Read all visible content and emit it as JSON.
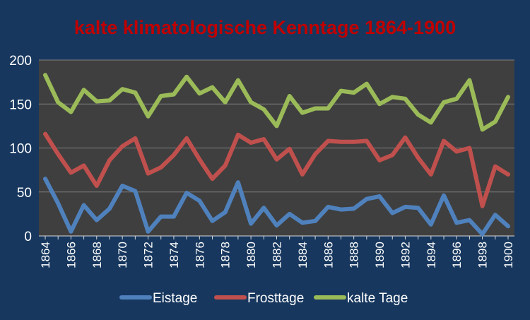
{
  "chart_data": {
    "type": "line",
    "title": "kalte klimatologische Kenntage 1864-1900",
    "xlabel": "",
    "ylabel": "",
    "x": [
      1864,
      1865,
      1866,
      1867,
      1868,
      1869,
      1870,
      1871,
      1872,
      1873,
      1874,
      1875,
      1876,
      1877,
      1878,
      1879,
      1880,
      1881,
      1882,
      1883,
      1884,
      1885,
      1886,
      1887,
      1888,
      1889,
      1890,
      1891,
      1892,
      1893,
      1894,
      1895,
      1896,
      1897,
      1898,
      1899,
      1900
    ],
    "xticks": [
      "1864",
      "1866",
      "1868",
      "1870",
      "1872",
      "1874",
      "1876",
      "1878",
      "1880",
      "1882",
      "1884",
      "1886",
      "1888",
      "1890",
      "1892",
      "1894",
      "1896",
      "1898",
      "1900"
    ],
    "ylim": [
      0,
      200
    ],
    "yticks": [
      "0",
      "50",
      "100",
      "150",
      "200"
    ],
    "grid": true,
    "legend": "bottom",
    "series": [
      {
        "name": "Eistage",
        "color": "#4f81bd",
        "values": [
          65,
          37,
          5,
          35,
          18,
          31,
          57,
          51,
          5,
          22,
          22,
          49,
          40,
          17,
          27,
          61,
          14,
          32,
          12,
          25,
          15,
          17,
          33,
          30,
          31,
          42,
          45,
          26,
          33,
          32,
          13,
          46,
          15,
          18,
          2,
          24,
          11
        ]
      },
      {
        "name": "Frosttage",
        "color": "#c0504d",
        "values": [
          116,
          93,
          72,
          80,
          57,
          86,
          102,
          111,
          71,
          78,
          92,
          111,
          87,
          65,
          80,
          115,
          106,
          110,
          87,
          99,
          70,
          93,
          108,
          107,
          107,
          108,
          86,
          92,
          112,
          89,
          70,
          108,
          96,
          100,
          34,
          79,
          70
        ]
      },
      {
        "name": "kalte Tage",
        "color": "#9bbb59",
        "values": [
          183,
          152,
          141,
          166,
          153,
          154,
          167,
          163,
          136,
          159,
          161,
          181,
          162,
          169,
          152,
          177,
          152,
          144,
          125,
          159,
          140,
          145,
          145,
          165,
          163,
          173,
          150,
          158,
          156,
          138,
          129,
          152,
          156,
          177,
          121,
          130,
          158
        ]
      }
    ]
  },
  "colors": {
    "background": "#17375e",
    "plot_area": "#3f3f3f",
    "grid": "#7f7f7f",
    "title": "#c00000",
    "axis_text": "#ffffff"
  }
}
